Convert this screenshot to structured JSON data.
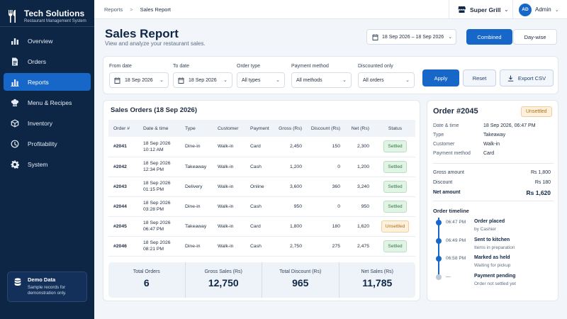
{
  "brand": {
    "name": "Tech Solutions",
    "subtitle": "Restaurant Management System"
  },
  "nav": [
    {
      "label": "Overview",
      "icon": "bar-chart-icon",
      "active": false
    },
    {
      "label": "Orders",
      "icon": "document-icon",
      "active": false
    },
    {
      "label": "Reports",
      "icon": "chart-icon",
      "active": true
    },
    {
      "label": "Menu & Recipes",
      "icon": "chef-hat-icon",
      "active": false
    },
    {
      "label": "Inventory",
      "icon": "box-icon",
      "active": false
    },
    {
      "label": "Profitability",
      "icon": "gauge-icon",
      "active": false
    },
    {
      "label": "System",
      "icon": "gear-icon",
      "active": false
    }
  ],
  "demo": {
    "title": "Demo Data",
    "desc_line1": "Sample records for",
    "desc_line2": "demonstration only."
  },
  "breadcrumb": {
    "root": "Reports",
    "sep": ">",
    "current": "Sales Report"
  },
  "outlet": {
    "name": "Super Grill"
  },
  "user": {
    "initials": "AD",
    "name": "Admin"
  },
  "header": {
    "title": "Sales Report",
    "subtitle": "View and analyze your restaurant sales.",
    "date_range": "18 Sep 2026 – 18 Sep 2026",
    "view_combined": "Combined",
    "view_daywise": "Day-wise"
  },
  "filters": {
    "from_label": "From date",
    "from_value": "18 Sep 2026",
    "to_label": "To date",
    "to_value": "18 Sep 2026",
    "type_label": "Order type",
    "type_value": "All types",
    "payment_label": "Payment method",
    "payment_value": "All methods",
    "discount_label": "Discounted only",
    "discount_value": "All orders",
    "apply": "Apply",
    "reset": "Reset",
    "export": "Export CSV"
  },
  "orders": {
    "title": "Sales Orders (18 Sep 2026)",
    "columns": [
      "Order #",
      "Date & time",
      "Type",
      "Customer",
      "Payment",
      "Gross (Rs)",
      "Discount (Rs)",
      "Net (Rs)",
      "Status"
    ],
    "rows": [
      {
        "id": "#2041",
        "date": "18 Sep 2026",
        "time": "10:12 AM",
        "type": "Dine-in",
        "customer": "Walk-in",
        "payment": "Card",
        "gross": "2,450",
        "discount": "150",
        "net": "2,300",
        "status": "Settled"
      },
      {
        "id": "#2042",
        "date": "18 Sep 2026",
        "time": "12:34 PM",
        "type": "Takeaway",
        "customer": "Walk-in",
        "payment": "Cash",
        "gross": "1,200",
        "discount": "0",
        "net": "1,200",
        "status": "Settled"
      },
      {
        "id": "#2043",
        "date": "18 Sep 2026",
        "time": "01:15 PM",
        "type": "Delivery",
        "customer": "Walk-in",
        "payment": "Online",
        "gross": "3,600",
        "discount": "360",
        "net": "3,240",
        "status": "Settled"
      },
      {
        "id": "#2044",
        "date": "18 Sep 2026",
        "time": "03:28 PM",
        "type": "Dine-in",
        "customer": "Walk-in",
        "payment": "Cash",
        "gross": "950",
        "discount": "0",
        "net": "950",
        "status": "Settled"
      },
      {
        "id": "#2045",
        "date": "18 Sep 2026",
        "time": "06:47 PM",
        "type": "Takeaway",
        "customer": "Walk-in",
        "payment": "Card",
        "gross": "1,800",
        "discount": "180",
        "net": "1,620",
        "status": "Unsettled"
      },
      {
        "id": "#2046",
        "date": "18 Sep 2026",
        "time": "08:21 PM",
        "type": "Dine-in",
        "customer": "Walk-in",
        "payment": "Cash",
        "gross": "2,750",
        "discount": "275",
        "net": "2,475",
        "status": "Settled"
      }
    ],
    "summary": [
      {
        "label": "Total Orders",
        "value": "6"
      },
      {
        "label": "Gross Sales (Rs)",
        "value": "12,750"
      },
      {
        "label": "Total Discount (Rs)",
        "value": "965"
      },
      {
        "label": "Net Sales (Rs)",
        "value": "11,785"
      }
    ]
  },
  "detail": {
    "title": "Order #2045",
    "status": "Unsettled",
    "fields": [
      {
        "k": "Date & time",
        "v": "18 Sep 2026, 06:47 PM"
      },
      {
        "k": "Type",
        "v": "Takeaway"
      },
      {
        "k": "Customer",
        "v": "Walk-in"
      },
      {
        "k": "Payment method",
        "v": "Card"
      }
    ],
    "gross_label": "Gross amount",
    "gross": "Rs 1,800",
    "discount_label": "Discount",
    "discount": "Rs 180",
    "net_label": "Net amount",
    "net": "Rs 1,620",
    "timeline_title": "Order timeline",
    "timeline": [
      {
        "time": "06:47 PM",
        "event": "Order placed",
        "sub": "by Cashier"
      },
      {
        "time": "06:49 PM",
        "event": "Sent to kitchen",
        "sub": "Items in preparation"
      },
      {
        "time": "06:58 PM",
        "event": "Marked as held",
        "sub": "Waiting for pickup"
      },
      {
        "time": "—",
        "event": "Payment pending",
        "sub": "Order not settled yet"
      }
    ]
  }
}
